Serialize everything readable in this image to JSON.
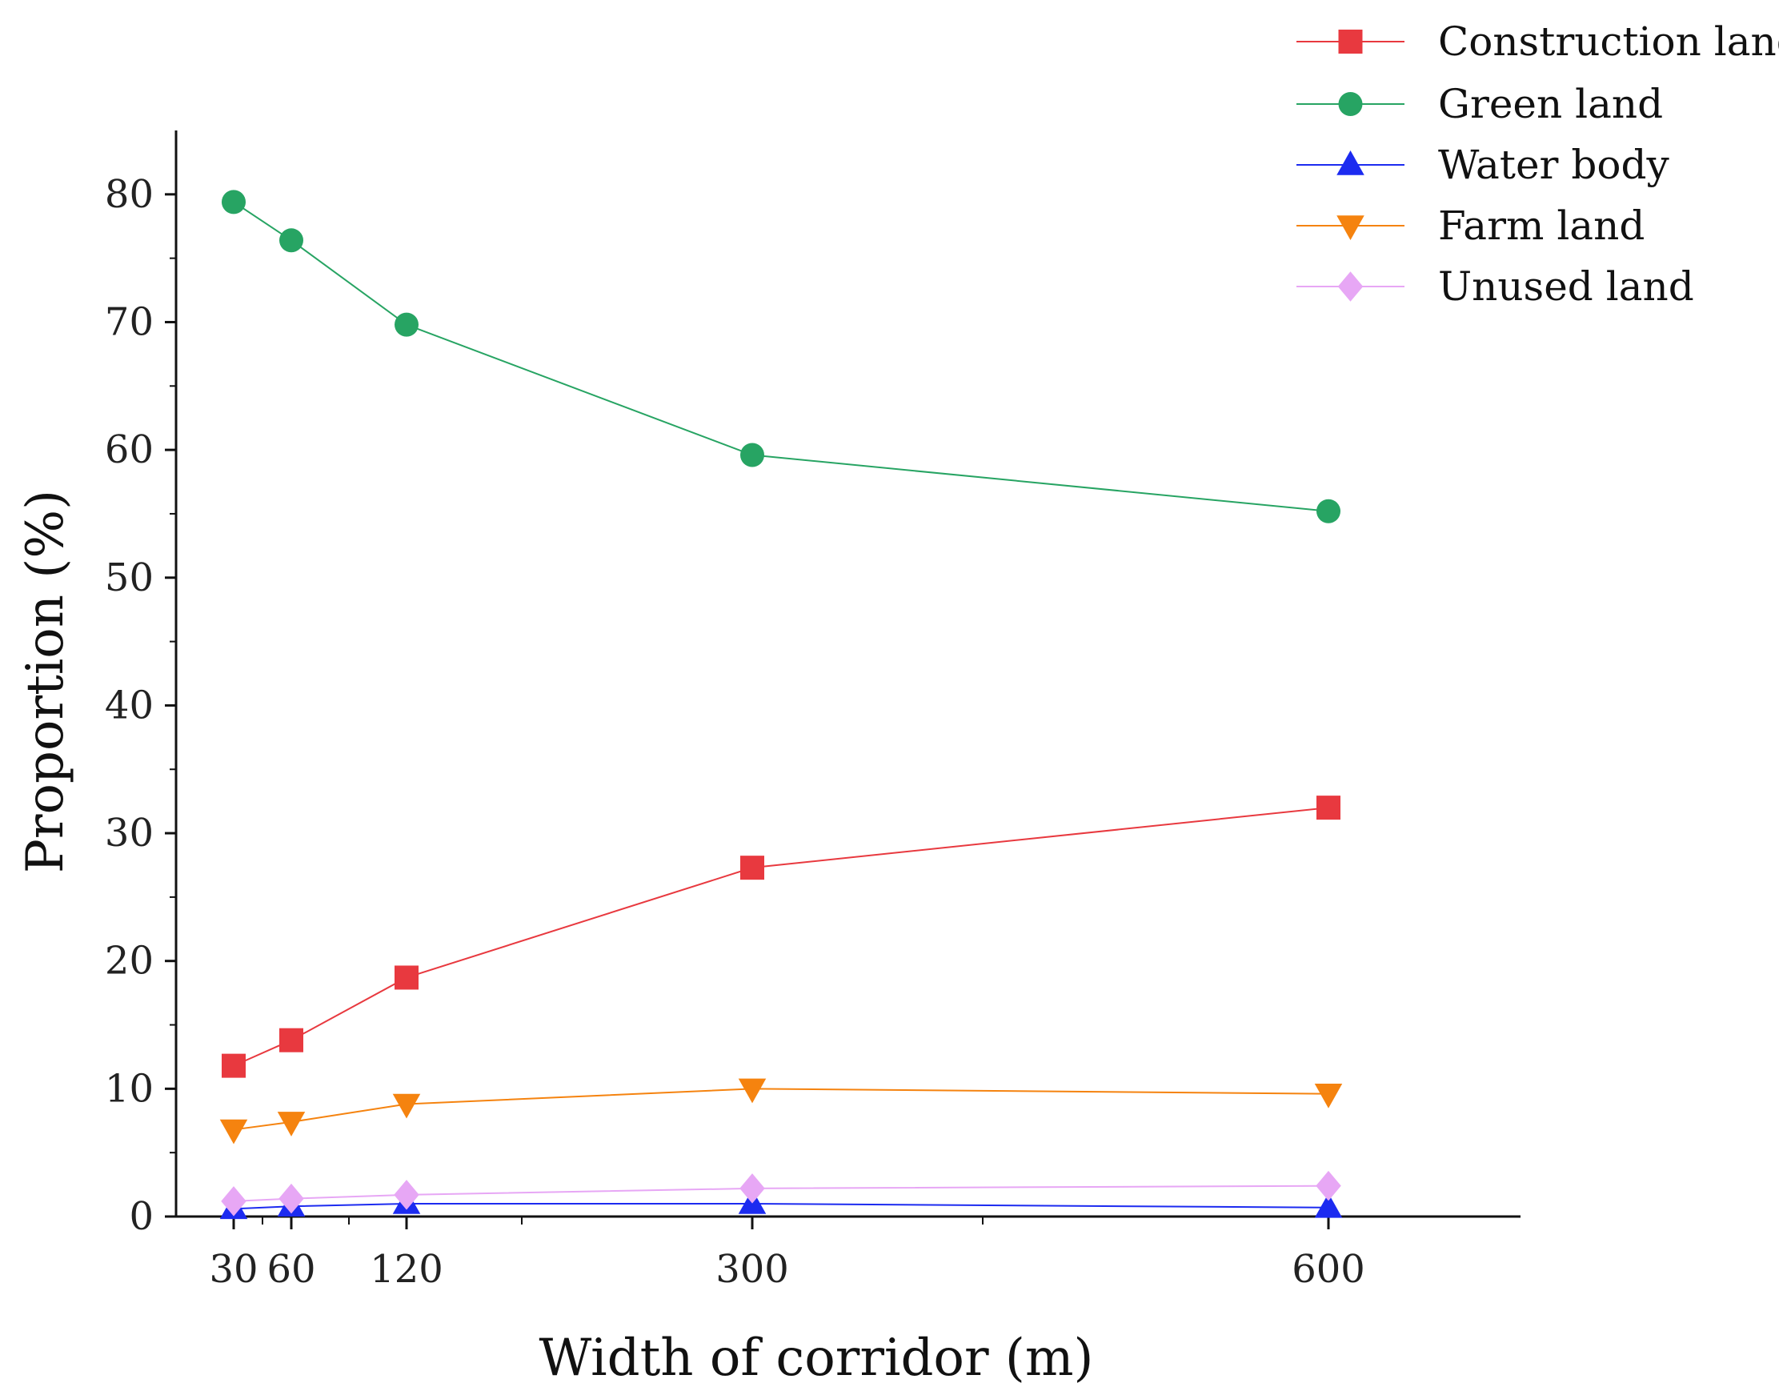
{
  "chart_data": {
    "type": "line",
    "title": "",
    "xlabel": "Width of corridor (m)",
    "ylabel": "Proportion (%)",
    "x": [
      30,
      60,
      120,
      300,
      600
    ],
    "x_tick_labels": [
      "30",
      "60",
      "120",
      "300",
      "600"
    ],
    "xlim": [
      0,
      700
    ],
    "ylim": [
      0,
      85
    ],
    "y_ticks": [
      0,
      10,
      20,
      30,
      40,
      50,
      60,
      70,
      80
    ],
    "y_tick_labels": [
      "0",
      "10",
      "20",
      "30",
      "40",
      "50",
      "60",
      "70",
      "80"
    ],
    "grid": false,
    "legend_position": "top-right",
    "series": [
      {
        "name": "Construction land",
        "marker": "square",
        "color": "#e8393f",
        "values": [
          11.8,
          13.8,
          18.7,
          27.3,
          32.0
        ]
      },
      {
        "name": "Green land",
        "marker": "circle",
        "color": "#27a463",
        "values": [
          79.4,
          76.4,
          69.8,
          59.6,
          55.2
        ]
      },
      {
        "name": "Water body",
        "marker": "triangle-up",
        "color": "#1c2bf0",
        "values": [
          0.6,
          0.8,
          1.0,
          1.0,
          0.7
        ]
      },
      {
        "name": "Farm land",
        "marker": "triangle-down",
        "color": "#f5830f",
        "values": [
          6.8,
          7.4,
          8.8,
          10.0,
          9.6
        ]
      },
      {
        "name": "Unused land",
        "marker": "diamond",
        "color": "#e7a7f5",
        "values": [
          1.2,
          1.4,
          1.7,
          2.2,
          2.4
        ]
      }
    ]
  }
}
